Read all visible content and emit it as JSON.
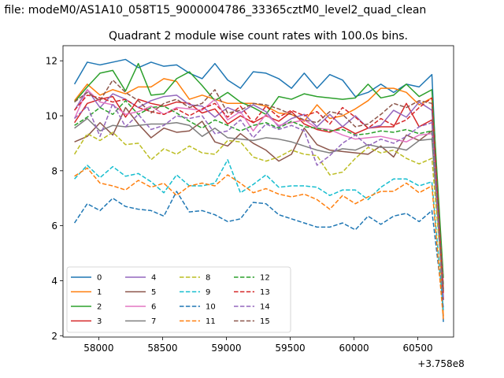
{
  "figure": {
    "suptitle": "n file: modeM0/AS1A10_058T15_9000004786_33365cztM0_level2_quad_clean",
    "offset_label": "+3.758e8"
  },
  "chart_data": {
    "type": "line",
    "title": "Quadrant 2 module wise count rates with 100.0s bins.",
    "xlabel": "",
    "ylabel": "",
    "xlim": [
      57720,
      60780
    ],
    "ylim": [
      1.95,
      12.55
    ],
    "x_ticks": [
      {
        "value": 58000,
        "label": "58000"
      },
      {
        "value": 58500,
        "label": "58500"
      },
      {
        "value": 59000,
        "label": "59000"
      },
      {
        "value": 59500,
        "label": "59500"
      },
      {
        "value": 60000,
        "label": "60000"
      },
      {
        "value": 60500,
        "label": "60500"
      }
    ],
    "y_ticks": [
      {
        "value": 2,
        "label": "2"
      },
      {
        "value": 4,
        "label": "4"
      },
      {
        "value": 6,
        "label": "6"
      },
      {
        "value": 8,
        "label": "8"
      },
      {
        "value": 10,
        "label": "10"
      },
      {
        "value": 12,
        "label": "12"
      }
    ],
    "grid": false,
    "legend_position": "lower-left",
    "x": [
      57810,
      57910,
      58010,
      58110,
      58210,
      58310,
      58410,
      58510,
      58610,
      58710,
      58810,
      58910,
      59010,
      59110,
      59210,
      59310,
      59410,
      59510,
      59610,
      59710,
      59810,
      59910,
      60010,
      60110,
      60210,
      60310,
      60410,
      60510,
      60610,
      60700
    ],
    "series": [
      {
        "name": "0",
        "color": "#1f77b4",
        "dash": "solid",
        "values": [
          11.15,
          11.95,
          11.85,
          11.95,
          12.05,
          11.75,
          11.95,
          11.8,
          11.85,
          11.55,
          11.35,
          11.9,
          11.3,
          11.0,
          11.6,
          11.55,
          11.35,
          11.0,
          11.55,
          11.0,
          11.5,
          11.3,
          10.7,
          10.85,
          11.15,
          10.85,
          11.15,
          11.05,
          11.5,
          2.5
        ]
      },
      {
        "name": "1",
        "color": "#ff7f0e",
        "dash": "solid",
        "values": [
          10.55,
          11.15,
          10.75,
          10.95,
          10.8,
          11.05,
          11.05,
          11.35,
          11.25,
          10.6,
          10.75,
          10.6,
          10.45,
          10.45,
          10.45,
          10.35,
          10.1,
          10.05,
          9.8,
          10.4,
          9.9,
          10.0,
          10.25,
          10.55,
          11.0,
          11.0,
          10.85,
          10.4,
          10.65,
          2.7
        ]
      },
      {
        "name": "2",
        "color": "#2ca02c",
        "dash": "solid",
        "values": [
          10.5,
          11.05,
          11.55,
          11.65,
          10.9,
          11.9,
          10.75,
          10.8,
          11.35,
          11.6,
          11.1,
          10.55,
          10.85,
          10.5,
          10.3,
          10.05,
          10.7,
          10.6,
          10.8,
          10.7,
          10.65,
          10.6,
          10.65,
          11.15,
          10.65,
          10.75,
          11.15,
          10.7,
          10.95,
          4.1
        ]
      },
      {
        "name": "3",
        "color": "#d62728",
        "dash": "solid",
        "values": [
          9.75,
          10.45,
          10.6,
          10.7,
          9.95,
          10.6,
          10.45,
          10.35,
          10.5,
          10.45,
          10.1,
          10.25,
          9.7,
          10.0,
          9.75,
          10.0,
          9.8,
          10.15,
          9.7,
          9.5,
          9.4,
          9.6,
          9.35,
          9.55,
          9.6,
          9.6,
          10.45,
          9.6,
          9.85,
          3.3
        ]
      },
      {
        "name": "4",
        "color": "#9467bd",
        "dash": "solid",
        "values": [
          10.2,
          10.95,
          10.3,
          10.8,
          10.6,
          10.3,
          10.55,
          10.7,
          10.75,
          10.4,
          10.35,
          9.95,
          10.3,
          10.1,
          10.4,
          10.15,
          9.6,
          9.9,
          10.05,
          9.6,
          10.05,
          9.6,
          10.0,
          9.55,
          9.65,
          10.2,
          9.95,
          10.5,
          10.2,
          3.6
        ]
      },
      {
        "name": "5",
        "color": "#8c564b",
        "dash": "solid",
        "values": [
          9.05,
          9.25,
          9.75,
          9.3,
          10.3,
          9.7,
          9.2,
          9.55,
          9.4,
          9.45,
          9.8,
          9.05,
          8.9,
          9.35,
          9.0,
          8.75,
          8.35,
          8.6,
          9.55,
          8.95,
          8.75,
          8.7,
          8.65,
          8.6,
          8.9,
          8.5,
          9.3,
          9.1,
          9.45,
          3.7
        ]
      },
      {
        "name": "6",
        "color": "#e377c2",
        "dash": "solid",
        "values": [
          9.9,
          10.95,
          10.5,
          10.4,
          10.05,
          10.15,
          10.35,
          10.05,
          10.3,
          10.25,
          10.2,
          10.6,
          9.85,
          10.15,
          9.45,
          10.05,
          9.65,
          9.75,
          9.85,
          9.55,
          9.5,
          9.3,
          9.15,
          9.2,
          9.25,
          9.15,
          9.05,
          9.3,
          9.35,
          3.9
        ]
      },
      {
        "name": "7",
        "color": "#7f7f7f",
        "dash": "solid",
        "values": [
          9.55,
          9.9,
          9.45,
          9.65,
          9.6,
          9.65,
          9.7,
          9.7,
          9.75,
          9.65,
          9.25,
          9.55,
          9.2,
          9.15,
          9.1,
          9.2,
          9.15,
          9.05,
          8.9,
          8.75,
          8.65,
          8.8,
          8.75,
          8.95,
          8.85,
          8.85,
          8.75,
          9.1,
          9.15,
          3.4
        ]
      },
      {
        "name": "8",
        "color": "#bcbd22",
        "dash": "dashed",
        "values": [
          8.6,
          9.35,
          9.1,
          9.4,
          8.95,
          9.0,
          8.4,
          8.8,
          8.6,
          8.9,
          8.65,
          8.6,
          9.1,
          9.05,
          8.5,
          8.35,
          8.5,
          8.75,
          8.6,
          8.55,
          7.85,
          7.95,
          8.45,
          8.85,
          8.65,
          8.75,
          8.45,
          8.25,
          8.45,
          3.6
        ]
      },
      {
        "name": "9",
        "color": "#17becf",
        "dash": "dashed",
        "values": [
          7.7,
          8.2,
          7.75,
          8.15,
          7.8,
          7.9,
          7.6,
          7.2,
          7.85,
          7.45,
          7.45,
          7.55,
          8.4,
          7.2,
          7.5,
          7.85,
          7.4,
          7.45,
          7.45,
          7.4,
          7.1,
          7.3,
          7.3,
          6.95,
          7.4,
          7.7,
          7.7,
          7.45,
          7.6,
          2.9
        ]
      },
      {
        "name": "10",
        "color": "#1f77b4",
        "dash": "dashed",
        "values": [
          6.1,
          6.8,
          6.55,
          7.0,
          6.7,
          6.6,
          6.55,
          6.35,
          7.25,
          6.5,
          6.55,
          6.4,
          6.15,
          6.25,
          6.85,
          6.8,
          6.4,
          6.25,
          6.1,
          5.95,
          5.95,
          6.1,
          5.85,
          6.35,
          6.05,
          6.35,
          6.45,
          6.15,
          6.55,
          3.0
        ]
      },
      {
        "name": "11",
        "color": "#ff7f0e",
        "dash": "dashed",
        "values": [
          7.8,
          8.1,
          7.55,
          7.45,
          7.3,
          7.65,
          7.4,
          7.55,
          7.1,
          7.45,
          7.55,
          7.45,
          7.85,
          7.55,
          7.2,
          7.35,
          7.15,
          7.05,
          7.15,
          6.95,
          6.6,
          7.1,
          6.8,
          7.05,
          7.25,
          7.25,
          7.55,
          7.2,
          7.45,
          2.6
        ]
      },
      {
        "name": "12",
        "color": "#2ca02c",
        "dash": "dashed",
        "values": [
          9.65,
          9.95,
          10.3,
          10.05,
          10.55,
          10.05,
          10.3,
          10.35,
          10.1,
          9.8,
          9.55,
          9.85,
          9.65,
          9.45,
          9.65,
          9.75,
          9.55,
          9.8,
          9.6,
          9.55,
          9.45,
          9.5,
          9.3,
          9.35,
          9.45,
          9.4,
          9.5,
          9.35,
          9.45,
          3.8
        ]
      },
      {
        "name": "13",
        "color": "#d62728",
        "dash": "dashed",
        "values": [
          10.2,
          10.75,
          10.65,
          10.5,
          10.6,
          10.3,
          10.15,
          10.05,
          10.25,
          10.0,
          10.25,
          10.45,
          9.95,
          10.35,
          9.75,
          10.35,
          9.95,
          10.2,
          10.0,
          10.15,
          9.7,
          10.3,
          9.95,
          9.55,
          9.9,
          9.65,
          9.85,
          10.3,
          10.65,
          3.5
        ]
      },
      {
        "name": "14",
        "color": "#9467bd",
        "dash": "dashed",
        "values": [
          9.9,
          10.35,
          9.25,
          10.45,
          9.6,
          10.05,
          9.5,
          9.65,
          10.0,
          9.9,
          10.0,
          9.35,
          9.45,
          9.85,
          9.2,
          9.7,
          9.5,
          9.65,
          9.45,
          8.2,
          8.55,
          9.0,
          9.3,
          8.9,
          9.15,
          9.0,
          9.25,
          9.6,
          9.75,
          3.3
        ]
      },
      {
        "name": "15",
        "color": "#8c564b",
        "dash": "dashed",
        "values": [
          10.5,
          10.85,
          10.55,
          11.3,
          10.85,
          10.55,
          10.1,
          10.45,
          10.6,
          10.3,
          10.45,
          10.95,
          10.1,
          10.2,
          10.45,
          10.4,
          10.25,
          10.05,
          9.85,
          9.75,
          10.15,
          10.05,
          9.6,
          9.7,
          10.05,
          10.45,
          10.3,
          10.55,
          10.45,
          3.6
        ]
      }
    ]
  }
}
